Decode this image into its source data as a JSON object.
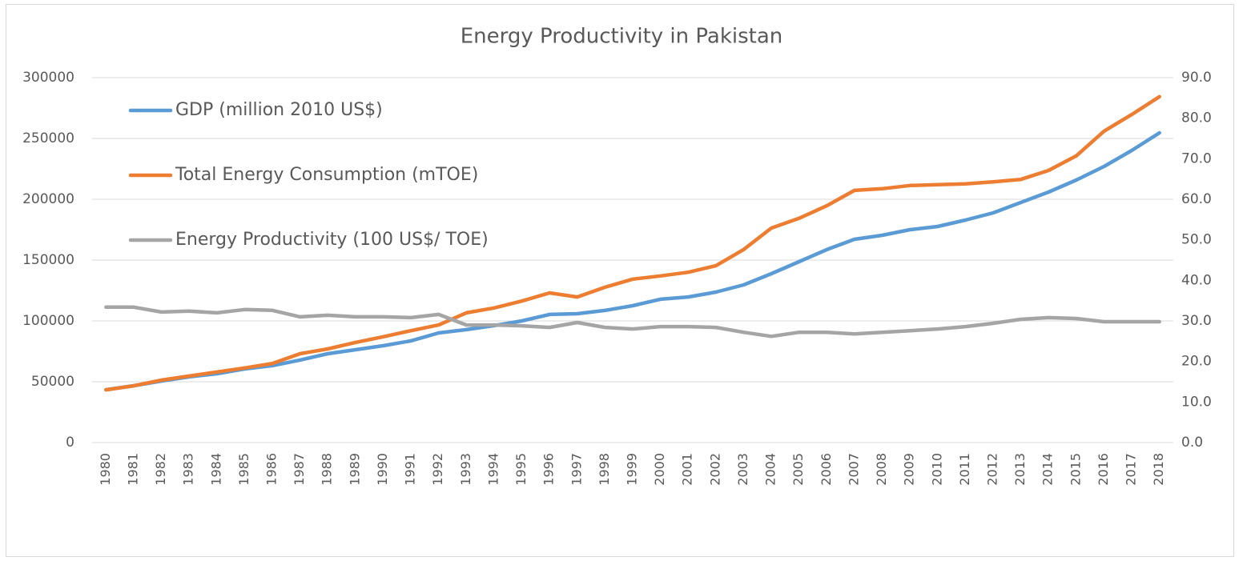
{
  "chart_data": {
    "type": "line",
    "title": "Energy Productivity in Pakistan",
    "categories": [
      "1980",
      "1981",
      "1982",
      "1983",
      "1984",
      "1985",
      "1986",
      "1987",
      "1988",
      "1989",
      "1990",
      "1991",
      "1992",
      "1993",
      "1994",
      "1995",
      "1996",
      "1997",
      "1998",
      "1999",
      "2000",
      "2001",
      "2002",
      "2003",
      "2004",
      "2005",
      "2006",
      "2007",
      "2008",
      "2009",
      "2010",
      "2011",
      "2012",
      "2013",
      "2014",
      "2015",
      "2016",
      "2017",
      "2018"
    ],
    "series": [
      {
        "name": "GDP (million 2010 US$)",
        "color": "#5b9bd5",
        "values": [
          43400,
          46700,
          50600,
          54000,
          56600,
          60500,
          63200,
          67800,
          73000,
          76300,
          79600,
          83600,
          90100,
          92800,
          96100,
          100000,
          105300,
          105900,
          108600,
          112500,
          117800,
          119700,
          123700,
          129600,
          138800,
          148700,
          158600,
          167100,
          170400,
          175000,
          177600,
          182900,
          188800,
          197400,
          205900,
          215800,
          227000,
          240100,
          254600
        ]
      },
      {
        "name": "Total Energy Consumption (mTOE)",
        "color": "#ed7d31",
        "axis": "y2",
        "values": [
          13.0,
          14.0,
          15.4,
          16.4,
          17.4,
          18.4,
          19.5,
          21.9,
          23.1,
          24.7,
          26.1,
          27.6,
          29.0,
          32.0,
          33.2,
          34.9,
          36.9,
          35.9,
          38.3,
          40.3,
          41.1,
          42.0,
          43.6,
          47.6,
          52.9,
          55.3,
          58.4,
          62.2,
          62.6,
          63.4,
          63.6,
          63.8,
          64.3,
          64.9,
          67.1,
          70.7,
          76.8,
          80.9,
          85.3
        ]
      },
      {
        "name": "Energy Productivity (100 US$/ TOE)",
        "color": "#a5a5a5",
        "axis": "y2",
        "values": [
          33.4,
          33.4,
          32.2,
          32.4,
          32.0,
          32.8,
          32.6,
          31.0,
          31.4,
          31.0,
          31.0,
          30.8,
          31.6,
          29.0,
          29.0,
          28.8,
          28.4,
          29.6,
          28.4,
          28.0,
          28.6,
          28.6,
          28.4,
          27.2,
          26.2,
          27.2,
          27.2,
          26.8,
          27.2,
          27.6,
          28.0,
          28.6,
          29.4,
          30.4,
          30.8,
          30.6,
          29.8,
          29.8,
          29.8
        ]
      }
    ],
    "ylim": [
      0,
      300000
    ],
    "yticks": [
      0,
      50000,
      100000,
      150000,
      200000,
      250000,
      300000
    ],
    "y2lim": [
      0,
      90
    ],
    "y2ticks": [
      {
        "value": 0,
        "label": "0.0"
      },
      {
        "value": 10,
        "label": "10.0"
      },
      {
        "value": 20,
        "label": "20.0"
      },
      {
        "value": 30,
        "label": "30.0"
      },
      {
        "value": 40,
        "label": "40.0"
      },
      {
        "value": 50,
        "label": "50.0"
      },
      {
        "value": 60,
        "label": "60.0"
      },
      {
        "value": 70,
        "label": "70.0"
      },
      {
        "value": 80,
        "label": "80.0"
      },
      {
        "value": 90,
        "label": "90.0"
      }
    ],
    "grid": true,
    "legend": "upper-left"
  }
}
